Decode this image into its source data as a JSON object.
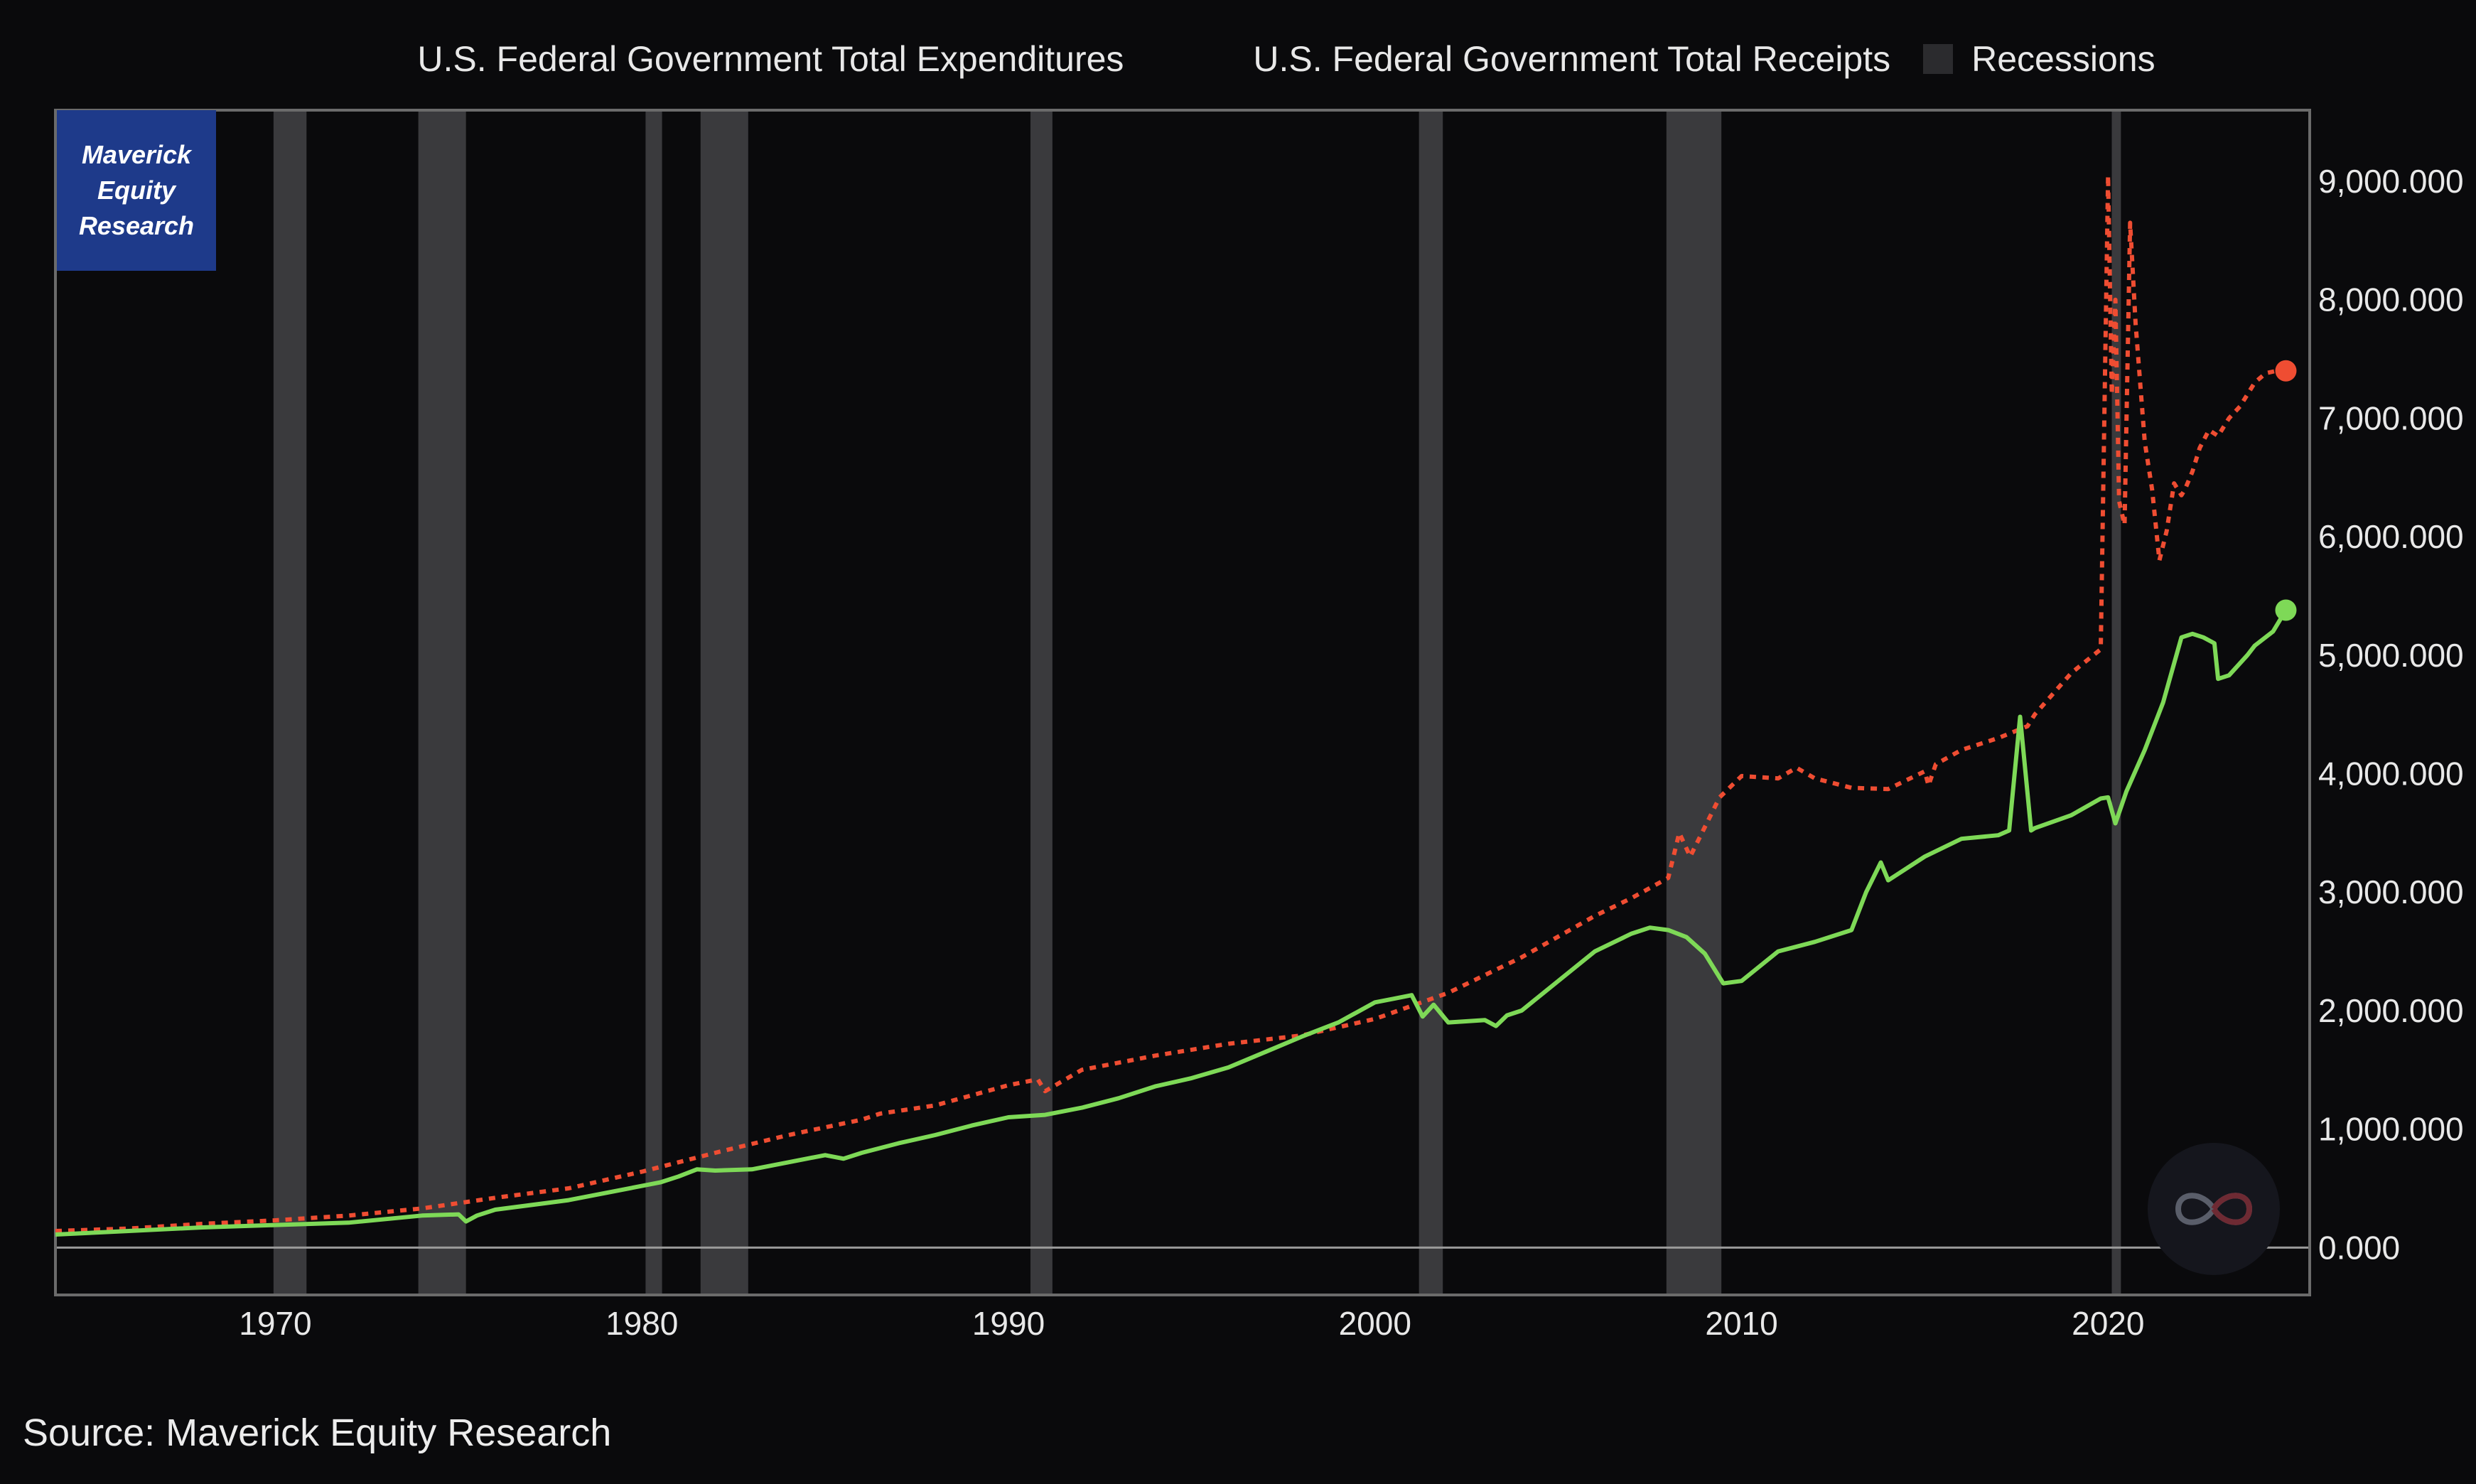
{
  "legend": {
    "expenditures": "U.S. Federal Government Total Expenditures",
    "receipts": "U.S. Federal Government Total Receipts",
    "recessions": "Recessions"
  },
  "badge": {
    "line1": "Maverick",
    "line2": "Equity",
    "line3": "Research"
  },
  "source": "Source: Maverick Equity Research",
  "colors": {
    "expenditures": "#ef4d32",
    "receipts": "#7ed957",
    "recession": "#3a3a3d",
    "background": "#0a0a0c",
    "badge": "#1e3a8a"
  },
  "chart_data": {
    "type": "line",
    "xlim": [
      1964,
      2025.5
    ],
    "ylim": [
      -400,
      9600
    ],
    "x_ticks": [
      1970,
      1980,
      1990,
      2000,
      2010,
      2020
    ],
    "x_tick_labels": [
      "1970",
      "1980",
      "1990",
      "2000",
      "2010",
      "2020"
    ],
    "y_ticks": [
      0,
      1000,
      2000,
      3000,
      4000,
      5000,
      6000,
      7000,
      8000,
      9000
    ],
    "y_tick_labels": [
      "0.000",
      "1,000.000",
      "2,000.000",
      "3,000.000",
      "4,000.000",
      "5,000.000",
      "6,000.000",
      "7,000.000",
      "8,000.000",
      "9,000.000"
    ],
    "grid": false,
    "legend_position": "top-center",
    "recessions": [
      [
        1969.95,
        1970.85
      ],
      [
        1973.9,
        1975.2
      ],
      [
        1980.1,
        1980.55
      ],
      [
        1981.6,
        1982.9
      ],
      [
        1990.6,
        1991.2
      ],
      [
        2001.2,
        2001.85
      ],
      [
        2007.95,
        2009.45
      ],
      [
        2020.1,
        2020.35
      ]
    ],
    "series": [
      {
        "name": "U.S. Federal Government Total Expenditures",
        "style": "dotted",
        "x": [
          1964,
          1966,
          1968,
          1970,
          1972,
          1974,
          1976,
          1978,
          1980,
          1982,
          1984,
          1986,
          1986.5,
          1988,
          1990,
          1990.8,
          1991,
          1992,
          1994,
          1996,
          1998,
          2000,
          2002,
          2004,
          2006,
          2007,
          2008,
          2008.3,
          2008.6,
          2009,
          2009.4,
          2010,
          2011,
          2011.5,
          2012,
          2013,
          2014,
          2015,
          2015.1,
          2015.3,
          2016,
          2017,
          2017.8,
          2018,
          2019,
          2019.8,
          2020,
          2020.1,
          2020.2,
          2020.3,
          2020.45,
          2020.6,
          2020.75,
          2020.9,
          2021,
          2021.2,
          2021.4,
          2021.6,
          2021.8,
          2022,
          2022.1,
          2022.3,
          2022.5,
          2022.75,
          2023,
          2023.3,
          2023.6,
          2023.8,
          2024,
          2024.3,
          2024.6,
          2024.85
        ],
        "values": [
          140,
          160,
          200,
          230,
          270,
          330,
          420,
          500,
          640,
          800,
          950,
          1080,
          1130,
          1200,
          1370,
          1420,
          1320,
          1500,
          1620,
          1720,
          1790,
          1930,
          2150,
          2450,
          2800,
          2950,
          3120,
          3500,
          3300,
          3550,
          3800,
          3980,
          3960,
          4050,
          3960,
          3880,
          3870,
          4020,
          3900,
          4080,
          4200,
          4300,
          4400,
          4500,
          4850,
          5050,
          9050,
          7200,
          8000,
          6300,
          6100,
          8650,
          7800,
          7200,
          6800,
          6400,
          5800,
          6050,
          6450,
          6350,
          6400,
          6550,
          6750,
          6900,
          6850,
          7000,
          7100,
          7200,
          7300,
          7380,
          7400,
          7400
        ]
      },
      {
        "name": "U.S. Federal Government Total Receipts",
        "style": "solid",
        "x": [
          1964,
          1966,
          1968,
          1970,
          1972,
          1974,
          1975,
          1975.2,
          1975.5,
          1976,
          1978,
          1980,
          1980.5,
          1981,
          1981.5,
          1982,
          1983,
          1984,
          1985,
          1985.5,
          1986,
          1987,
          1988,
          1989,
          1990,
          1991,
          1992,
          1993,
          1994,
          1995,
          1996,
          1997,
          1998,
          1999,
          2000,
          2000.5,
          2001,
          2001.3,
          2001.6,
          2002,
          2003,
          2003.3,
          2003.6,
          2004,
          2005,
          2006,
          2007,
          2007.5,
          2008,
          2008.5,
          2009,
          2009.5,
          2010,
          2011,
          2012,
          2013,
          2013.4,
          2013.8,
          2014,
          2015,
          2016,
          2017,
          2017.3,
          2017.6,
          2017.9,
          2018,
          2019,
          2019.8,
          2020,
          2020.2,
          2020.5,
          2021,
          2021.5,
          2022,
          2022.3,
          2022.6,
          2022.9,
          2023,
          2023.3,
          2023.8,
          2024,
          2024.5,
          2024.85
        ],
        "values": [
          110,
          140,
          170,
          190,
          210,
          270,
          280,
          220,
          270,
          320,
          400,
          520,
          550,
          600,
          660,
          650,
          660,
          720,
          780,
          750,
          800,
          880,
          950,
          1030,
          1100,
          1120,
          1180,
          1260,
          1360,
          1430,
          1520,
          1650,
          1780,
          1900,
          2070,
          2100,
          2130,
          1950,
          2050,
          1900,
          1920,
          1870,
          1960,
          2000,
          2250,
          2500,
          2650,
          2700,
          2680,
          2620,
          2480,
          2230,
          2250,
          2500,
          2580,
          2680,
          3000,
          3250,
          3100,
          3300,
          3450,
          3480,
          3520,
          4480,
          3520,
          3540,
          3650,
          3790,
          3800,
          3580,
          3850,
          4200,
          4600,
          5150,
          5180,
          5150,
          5100,
          4800,
          4830,
          5000,
          5080,
          5200,
          5380
        ]
      }
    ]
  }
}
